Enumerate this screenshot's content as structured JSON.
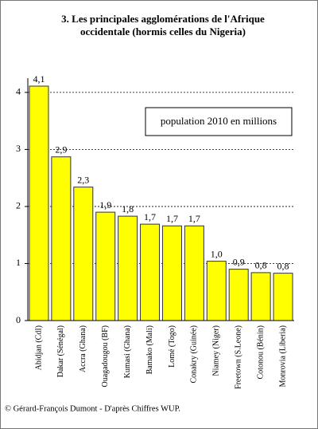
{
  "chart_data": {
    "type": "bar",
    "title": "3.  Les principales agglomérations de l'Afrique occidentale (hormis celles du Nigeria)",
    "legend_text": "population 2010 en millions",
    "footer": "© Gérard-François Dumont - D'après Chiffres WUP.",
    "categories": [
      "Abidjan (CdI)",
      "Dakar (Sénégal)",
      "Accra (Ghana)",
      "Ouagadougou (BF)",
      "Kumasi (Ghana)",
      "Bamako (Mali)",
      "Lomé (Togo)",
      "Conakry (Guinée)",
      "Niamey (Niger)",
      "Freetown (S.Leone)",
      "Cotonou (Bénin)",
      "Monrovia (Liberia)"
    ],
    "values": [
      4.11,
      2.87,
      2.34,
      1.9,
      1.83,
      1.69,
      1.66,
      1.66,
      1.04,
      0.9,
      0.84,
      0.83
    ],
    "value_labels": [
      "4,1",
      "2,9",
      "2,3",
      "1,9",
      "1,8",
      "1,7",
      "1,7",
      "1,7",
      "1,0",
      "0,9",
      "0,8",
      "0,8"
    ],
    "color": "#ffff00",
    "ylim": [
      0,
      4.25
    ],
    "yticks": [
      0,
      1,
      2,
      3,
      4
    ],
    "grid": true
  }
}
